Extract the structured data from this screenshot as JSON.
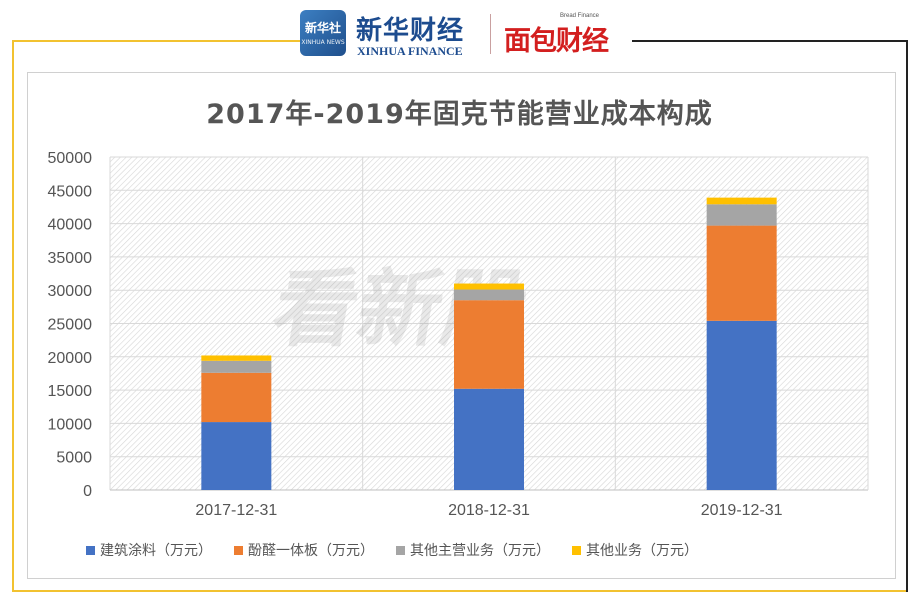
{
  "header": {
    "xinhua_badge_cn": "新华社",
    "xinhua_badge_en": "XINHUA NEWS",
    "xinhua_cn": "新华财经",
    "xinhua_en": "XINHUA FINANCE",
    "bread_en": "Bread Finance",
    "bread_cn": "面包财经"
  },
  "watermark": "看新股",
  "colors": {
    "frame_gold": "#f2c230",
    "frame_dark": "#222222",
    "series": [
      "#4472c4",
      "#ed7d31",
      "#a5a5a5",
      "#ffc000"
    ]
  },
  "chart_data": {
    "type": "bar",
    "stacked": true,
    "title": "2017年-2019年固克节能营业成本构成",
    "categories": [
      "2017-12-31",
      "2018-12-31",
      "2019-12-31"
    ],
    "series": [
      {
        "name": "建筑涂料（万元）",
        "values": [
          10200,
          15200,
          25400
        ]
      },
      {
        "name": "酚醛一体板（万元）",
        "values": [
          7400,
          13300,
          14300
        ]
      },
      {
        "name": "其他主营业务（万元）",
        "values": [
          1800,
          1600,
          3200
        ]
      },
      {
        "name": "其他业务（万元）",
        "values": [
          800,
          900,
          1000
        ]
      }
    ],
    "ylim": [
      0,
      50000
    ],
    "yticks": [
      "0",
      "5000",
      "10000",
      "15000",
      "20000",
      "25000",
      "30000",
      "35000",
      "40000",
      "45000",
      "50000"
    ],
    "grid": true,
    "legend_position": "bottom"
  }
}
